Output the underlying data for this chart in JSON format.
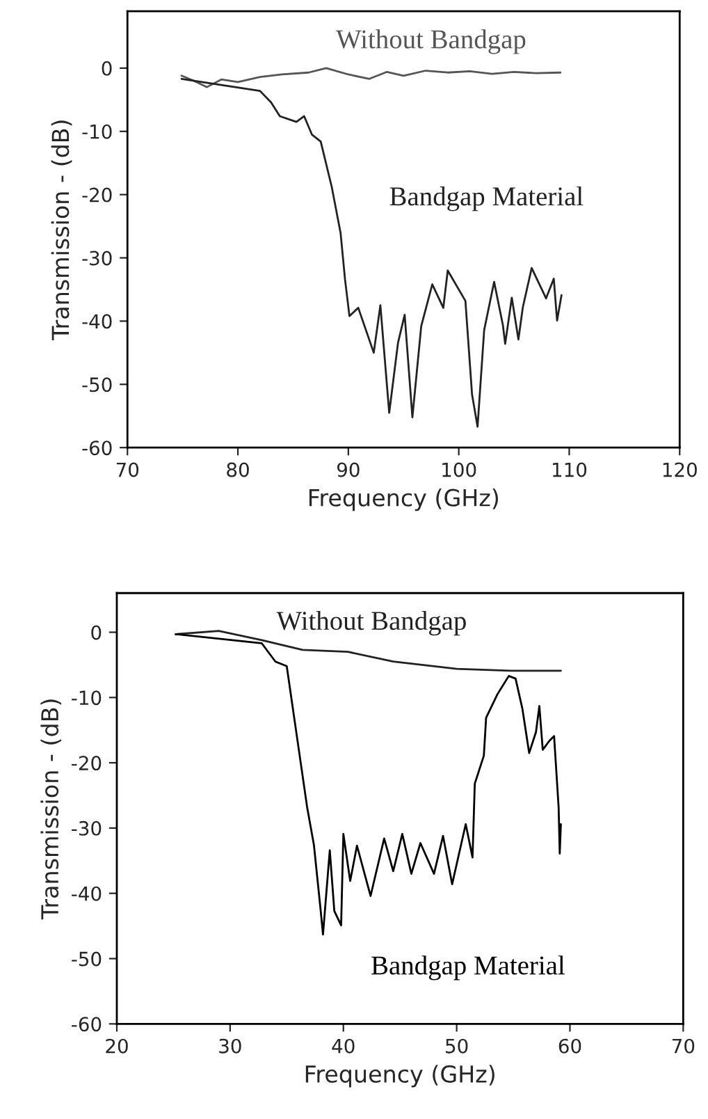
{
  "chart_data": [
    {
      "type": "line",
      "xlabel": "Frequency (GHz)",
      "ylabel": "Transmission - (dB)",
      "xlim": [
        70,
        120
      ],
      "xticks": [
        70,
        80,
        90,
        100,
        110,
        120
      ],
      "ylim": [
        -60,
        9
      ],
      "yticks": [
        -60,
        -50,
        -40,
        -30,
        -20,
        -10,
        0
      ],
      "grid": false,
      "legend": false,
      "series": [
        {
          "name": "Without Bandgap",
          "color": "#555555",
          "x": [
            74.9,
            76.0,
            77.2,
            78.5,
            80.0,
            82.0,
            84.0,
            86.4,
            88.0,
            90.0,
            91.9,
            93.5,
            95.0,
            97.0,
            99.0,
            101.0,
            103.0,
            105.0,
            107.0,
            109.2
          ],
          "values": [
            -1.2,
            -2.0,
            -3.0,
            -1.8,
            -2.2,
            -1.4,
            -1.0,
            -0.7,
            0.0,
            -1.0,
            -1.7,
            -0.6,
            -1.2,
            -0.4,
            -0.7,
            -0.5,
            -0.9,
            -0.6,
            -0.8,
            -0.7
          ]
        },
        {
          "name": "Bandgap Material",
          "color": "#222222",
          "x": [
            74.9,
            82.0,
            83.0,
            83.8,
            85.3,
            86.0,
            86.7,
            87.5,
            88.5,
            89.3,
            89.7,
            90.1,
            90.9,
            92.3,
            92.9,
            93.7,
            94.5,
            95.1,
            95.8,
            96.6,
            97.6,
            98.6,
            99.0,
            100.6,
            101.2,
            101.7,
            102.3,
            103.2,
            104.0,
            104.2,
            104.8,
            105.4,
            105.8,
            106.6,
            107.9,
            108.6,
            108.9,
            109.3
          ],
          "values": [
            -1.7,
            -3.6,
            -5.4,
            -7.6,
            -8.5,
            -7.6,
            -10.5,
            -11.6,
            -18.8,
            -26.1,
            -33.4,
            -39.2,
            -37.9,
            -45.0,
            -37.5,
            -54.5,
            -43.4,
            -39.0,
            -55.2,
            -40.8,
            -34.2,
            -37.9,
            -32.0,
            -36.8,
            -51.6,
            -56.7,
            -41.4,
            -33.8,
            -40.7,
            -43.6,
            -36.3,
            -42.9,
            -37.8,
            -31.6,
            -36.4,
            -33.3,
            -39.9,
            -35.9
          ]
        }
      ]
    },
    {
      "type": "line",
      "xlabel": "Frequency (GHz)",
      "ylabel": "Transmission - (dB)",
      "xlim": [
        20,
        70
      ],
      "xticks": [
        20,
        30,
        40,
        50,
        60,
        70
      ],
      "ylim": [
        -60,
        6
      ],
      "yticks": [
        -60,
        -50,
        -40,
        -30,
        -20,
        -10,
        0
      ],
      "grid": false,
      "legend": false,
      "series": [
        {
          "name": "Without Bandgap",
          "color": "#222222",
          "x": [
            25.2,
            29.0,
            32.8,
            36.4,
            40.4,
            44.4,
            50.0,
            54.8,
            59.2
          ],
          "values": [
            -0.3,
            0.2,
            -1.2,
            -2.7,
            -3.0,
            -4.5,
            -5.6,
            -5.9,
            -5.9
          ]
        },
        {
          "name": "Bandgap Material",
          "color": "#000000",
          "x": [
            25.2,
            32.8,
            34.0,
            35.0,
            35.6,
            36.2,
            36.8,
            37.4,
            38.0,
            38.2,
            38.8,
            39.2,
            39.8,
            40.0,
            40.6,
            41.2,
            42.4,
            43.6,
            44.4,
            45.2,
            46.0,
            46.8,
            48.0,
            48.8,
            49.6,
            50.8,
            51.4,
            51.6,
            52.4,
            52.6,
            53.6,
            54.6,
            55.2,
            55.8,
            56.4,
            57.0,
            57.3,
            57.6,
            58.2,
            58.6,
            59.0,
            59.1,
            59.2
          ],
          "values": [
            -0.3,
            -1.7,
            -4.5,
            -5.2,
            -12.4,
            -19.6,
            -26.8,
            -32.6,
            -42.7,
            -46.3,
            -33.4,
            -42.7,
            -44.9,
            -30.9,
            -38.1,
            -32.7,
            -40.4,
            -31.6,
            -36.6,
            -30.9,
            -37.0,
            -32.3,
            -37.0,
            -31.2,
            -38.6,
            -29.4,
            -34.5,
            -23.2,
            -18.9,
            -13.1,
            -9.5,
            -6.7,
            -7.1,
            -11.7,
            -18.5,
            -15.3,
            -11.3,
            -18.0,
            -16.6,
            -15.9,
            -26.8,
            -33.9,
            -29.4
          ]
        }
      ]
    }
  ]
}
